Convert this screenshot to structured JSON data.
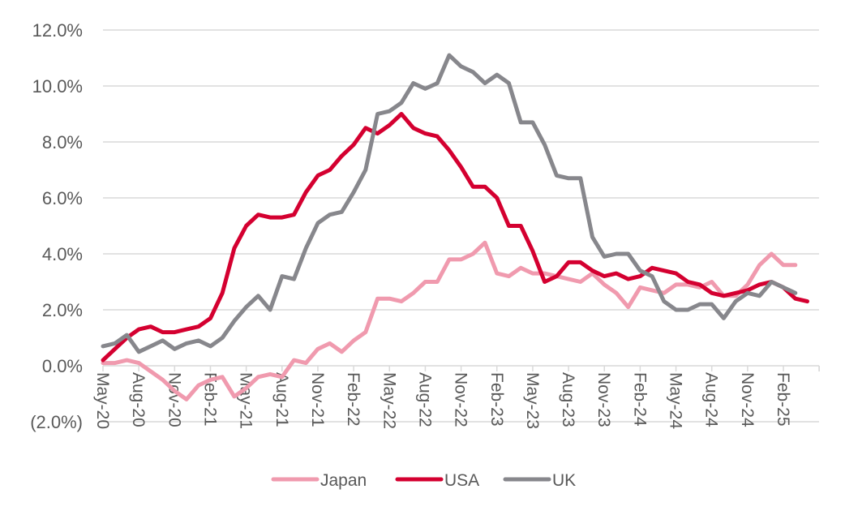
{
  "chart_data": {
    "type": "line",
    "title": "",
    "xlabel": "",
    "ylabel": "",
    "ylim": [
      -2.0,
      12.0
    ],
    "yticks": [
      -2.0,
      0.0,
      2.0,
      4.0,
      6.0,
      8.0,
      10.0,
      12.0
    ],
    "ytick_labels": [
      "(2.0%)",
      "0.0%",
      "2.0%",
      "4.0%",
      "6.0%",
      "8.0%",
      "10.0%",
      "12.0%"
    ],
    "grid": true,
    "legend_position": "bottom",
    "x_start": "May-20",
    "x_labels": [
      "May-20",
      "Aug-20",
      "Nov-20",
      "Feb-21",
      "May-21",
      "Aug-21",
      "Nov-21",
      "Feb-22",
      "May-22",
      "Aug-22",
      "Nov-22",
      "Feb-23",
      "May-23",
      "Aug-23",
      "Nov-23",
      "Feb-24",
      "May-24",
      "Aug-24",
      "Nov-24",
      "Feb-25"
    ],
    "n_periods": 60,
    "series": [
      {
        "name": "Japan",
        "color": "#F09AAE",
        "values": [
          0.1,
          0.1,
          0.2,
          0.1,
          -0.2,
          -0.5,
          -0.9,
          -1.2,
          -0.7,
          -0.5,
          -0.4,
          -1.1,
          -0.8,
          -0.4,
          -0.3,
          -0.4,
          0.2,
          0.1,
          0.6,
          0.8,
          0.5,
          0.9,
          1.2,
          2.4,
          2.4,
          2.3,
          2.6,
          3.0,
          3.0,
          3.8,
          3.8,
          4.0,
          4.4,
          3.3,
          3.2,
          3.5,
          3.3,
          3.3,
          3.2,
          3.1,
          3.0,
          3.3,
          2.9,
          2.6,
          2.1,
          2.8,
          2.7,
          2.6,
          2.9,
          2.9,
          2.8,
          3.0,
          2.5,
          2.5,
          2.9,
          3.6,
          4.0,
          3.6,
          3.6
        ]
      },
      {
        "name": "USA",
        "color": "#D40030",
        "values": [
          0.2,
          0.6,
          1.0,
          1.3,
          1.4,
          1.2,
          1.2,
          1.3,
          1.4,
          1.7,
          2.6,
          4.2,
          5.0,
          5.4,
          5.3,
          5.3,
          5.4,
          6.2,
          6.8,
          7.0,
          7.5,
          7.9,
          8.5,
          8.3,
          8.6,
          9.0,
          8.5,
          8.3,
          8.2,
          7.7,
          7.1,
          6.4,
          6.4,
          6.0,
          5.0,
          5.0,
          4.1,
          3.0,
          3.2,
          3.7,
          3.7,
          3.4,
          3.2,
          3.3,
          3.1,
          3.2,
          3.5,
          3.4,
          3.3,
          3.0,
          2.9,
          2.6,
          2.5,
          2.6,
          2.7,
          2.9,
          3.0,
          2.8,
          2.4,
          2.3
        ]
      },
      {
        "name": "UK",
        "color": "#87878C",
        "values": [
          0.7,
          0.8,
          1.1,
          0.5,
          0.7,
          0.9,
          0.6,
          0.8,
          0.9,
          0.7,
          1.0,
          1.6,
          2.1,
          2.5,
          2.0,
          3.2,
          3.1,
          4.2,
          5.1,
          5.4,
          5.5,
          6.2,
          7.0,
          9.0,
          9.1,
          9.4,
          10.1,
          9.9,
          10.1,
          11.1,
          10.7,
          10.5,
          10.1,
          10.4,
          10.1,
          8.7,
          8.7,
          7.9,
          6.8,
          6.7,
          6.7,
          4.6,
          3.9,
          4.0,
          4.0,
          3.4,
          3.2,
          2.3,
          2.0,
          2.0,
          2.2,
          2.2,
          1.7,
          2.3,
          2.6,
          2.5,
          3.0,
          2.8,
          2.6
        ]
      }
    ]
  }
}
